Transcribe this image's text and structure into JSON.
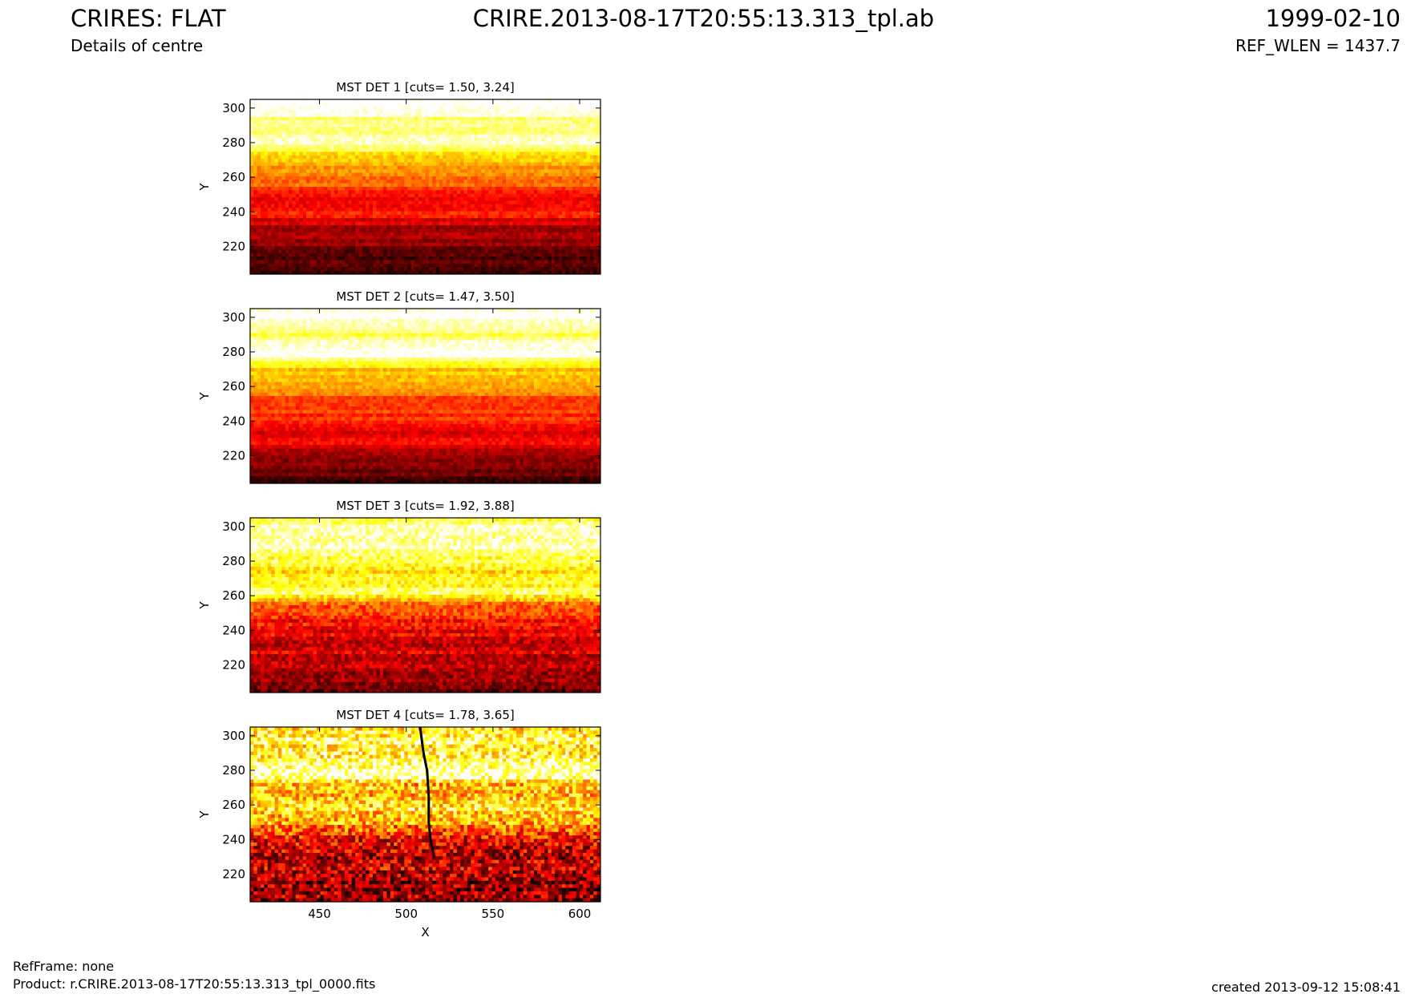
{
  "header": {
    "title": "CRIRES: FLAT",
    "subtitle": "Details of centre",
    "filename": "CRIRE.2013-08-17T20:55:13.313_tpl.ab",
    "date": "1999-02-10",
    "ref_wlen": "REF_WLEN = 1437.7"
  },
  "footer": {
    "refframe": "RefFrame: none",
    "product": "Product: r.CRIRE.2013-08-17T20:55:13.313_tpl_0000.fits",
    "created": "created 2013-09-12 15:08:41"
  },
  "colors": {
    "colormap": "hot",
    "axis": "#000000"
  },
  "chart_data": [
    {
      "type": "heatmap",
      "title": "MST DET 1 [cuts= 1.50, 3.24]",
      "xlabel": "",
      "ylabel": "Y",
      "xlim": [
        410,
        612
      ],
      "ylim": [
        204,
        305
      ],
      "xticks": [],
      "yticks": [
        220,
        240,
        260,
        280,
        300
      ],
      "profile": {
        "y": [
          204,
          212,
          222,
          232,
          240,
          244,
          252,
          262,
          270,
          276,
          280,
          286,
          292,
          300,
          305
        ],
        "level": [
          0.05,
          0.12,
          0.22,
          0.28,
          0.42,
          0.3,
          0.45,
          0.55,
          0.65,
          0.82,
          0.98,
          0.88,
          0.86,
          1.0,
          1.0
        ]
      }
    },
    {
      "type": "heatmap",
      "title": "MST DET 2 [cuts= 1.47, 3.50]",
      "xlabel": "",
      "ylabel": "Y",
      "xlim": [
        410,
        612
      ],
      "ylim": [
        204,
        305
      ],
      "xticks": [],
      "yticks": [
        220,
        240,
        260,
        280,
        300
      ],
      "profile": {
        "y": [
          204,
          212,
          222,
          232,
          240,
          246,
          256,
          264,
          272,
          276,
          280,
          286,
          290,
          300,
          305
        ],
        "level": [
          0.1,
          0.18,
          0.3,
          0.36,
          0.42,
          0.45,
          0.52,
          0.62,
          0.72,
          0.96,
          0.98,
          0.9,
          0.85,
          1.0,
          1.0
        ]
      }
    },
    {
      "type": "heatmap",
      "title": "MST DET 3 [cuts= 1.92, 3.88]",
      "xlabel": "",
      "ylabel": "Y",
      "xlim": [
        410,
        612
      ],
      "ylim": [
        204,
        305
      ],
      "xticks": [],
      "yticks": [
        220,
        240,
        260,
        280,
        300
      ],
      "profile": {
        "y": [
          204,
          212,
          222,
          232,
          242,
          250,
          256,
          262,
          266,
          272,
          280,
          288,
          292,
          298,
          305
        ],
        "level": [
          0.1,
          0.2,
          0.28,
          0.32,
          0.38,
          0.45,
          0.55,
          0.85,
          0.75,
          0.72,
          0.8,
          0.96,
          0.9,
          0.98,
          0.85
        ]
      }
    },
    {
      "type": "heatmap",
      "title": "MST DET 4 [cuts= 1.78, 3.65]",
      "xlabel": "X",
      "ylabel": "Y",
      "xlim": [
        410,
        612
      ],
      "ylim": [
        204,
        305
      ],
      "xticks": [
        450,
        500,
        550,
        600
      ],
      "yticks": [
        220,
        240,
        260,
        280,
        300
      ],
      "profile": {
        "y": [
          204,
          214,
          224,
          234,
          244,
          250,
          256,
          264,
          272,
          276,
          280,
          286,
          294,
          300,
          305
        ],
        "level": [
          0.2,
          0.25,
          0.3,
          0.32,
          0.42,
          0.62,
          0.72,
          0.68,
          0.65,
          0.98,
          1.0,
          0.82,
          0.8,
          0.78,
          0.75
        ]
      },
      "trace": {
        "x": [
          508,
          510,
          512,
          513,
          513,
          514,
          516
        ],
        "y": [
          305,
          290,
          280,
          265,
          250,
          240,
          230
        ]
      }
    }
  ]
}
